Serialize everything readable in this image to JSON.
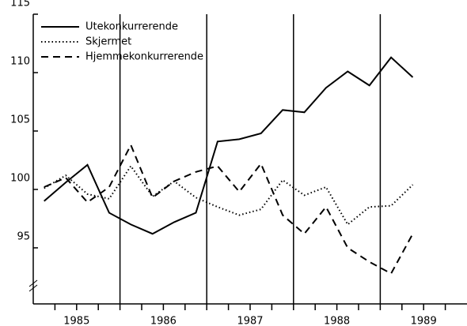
{
  "chart_data": {
    "type": "line",
    "x": [
      1985.125,
      1985.375,
      1985.625,
      1985.875,
      1986.125,
      1986.375,
      1986.625,
      1986.875,
      1987.125,
      1987.375,
      1987.625,
      1987.875,
      1988.125,
      1988.375,
      1988.625,
      1988.875,
      1989.125,
      1989.375
    ],
    "series": [
      {
        "name": "Utekonkurrerende",
        "color": "#000",
        "dash": "solid",
        "values": [
          99.0,
          100.6,
          102.1,
          98.0,
          97.0,
          96.2,
          97.2,
          98.0,
          104.1,
          104.3,
          104.8,
          106.8,
          106.6,
          108.7,
          110.1,
          108.9,
          111.3,
          109.6
        ]
      },
      {
        "name": "Skjermet",
        "color": "#000",
        "dash": "dotted",
        "values": [
          100.1,
          101.2,
          99.6,
          99.2,
          102.0,
          99.4,
          100.7,
          99.3,
          98.5,
          97.8,
          98.3,
          100.8,
          99.5,
          100.2,
          97.0,
          98.5,
          98.6,
          100.4
        ]
      },
      {
        "name": "Hjemmekonkurrerende",
        "color": "#000",
        "dash": "dashed",
        "values": [
          100.2,
          101.0,
          98.9,
          100.2,
          103.8,
          99.3,
          100.7,
          101.5,
          102.0,
          99.8,
          102.2,
          97.8,
          96.2,
          98.5,
          95.0,
          93.8,
          92.8,
          96.2
        ]
      }
    ],
    "xlim": [
      1985,
      1990
    ],
    "xticks": [
      {
        "value": 1985.5,
        "label": "1985"
      },
      {
        "value": 1986.5,
        "label": "1986"
      },
      {
        "value": 1987.5,
        "label": "1987"
      },
      {
        "value": 1988.5,
        "label": "1988"
      },
      {
        "value": 1989.5,
        "label": "1989"
      }
    ],
    "xminorticks": [
      1985.25,
      1985.5,
      1985.75,
      1986,
      1986.25,
      1986.5,
      1986.75,
      1987,
      1987.25,
      1987.5,
      1987.75,
      1988,
      1988.25,
      1988.5,
      1988.75,
      1989,
      1989.25,
      1989.5,
      1989.75
    ],
    "vlines": [
      1986,
      1987,
      1988,
      1989
    ],
    "ylim": [
      90.2,
      115
    ],
    "yticks": [
      95,
      100,
      105,
      110,
      115
    ],
    "legend": "upper-left"
  }
}
